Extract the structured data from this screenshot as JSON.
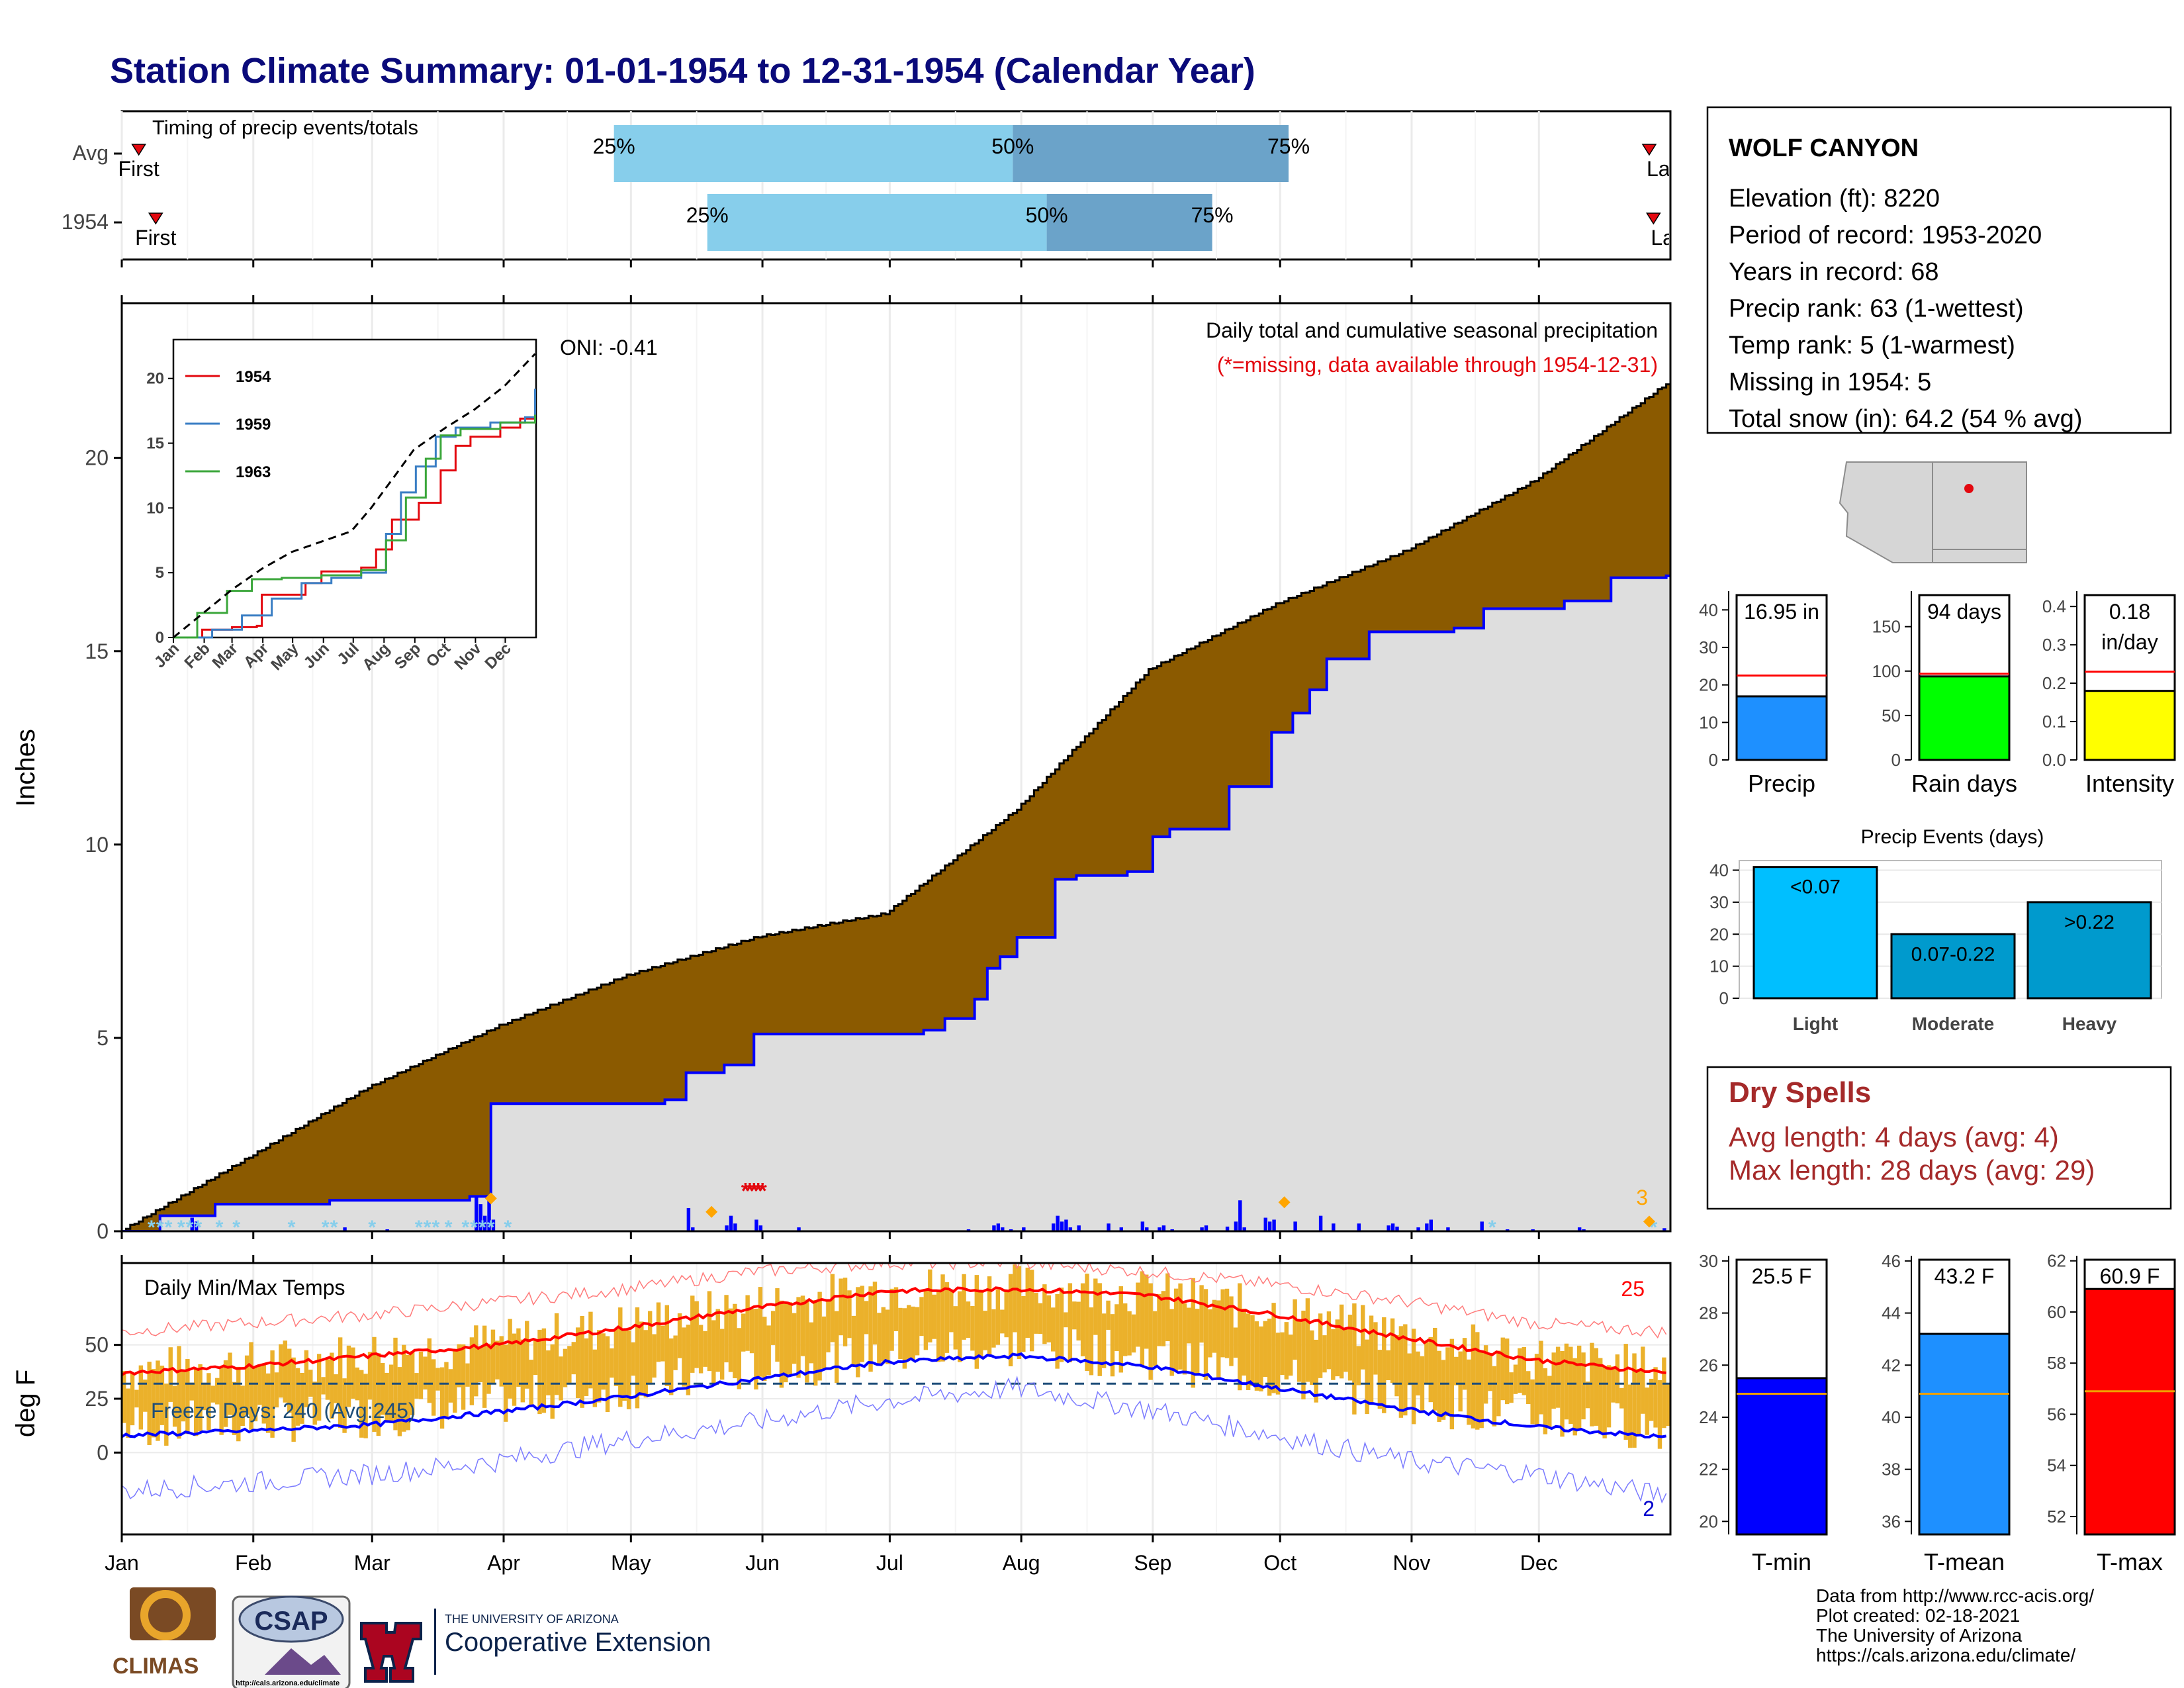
{
  "page": {
    "title": "Station Climate Summary: 01-01-1954 to 12-31-1954 (Calendar Year)",
    "months": [
      "Jan",
      "Feb",
      "Mar",
      "Apr",
      "May",
      "Jun",
      "Jul",
      "Aug",
      "Sep",
      "Oct",
      "Nov",
      "Dec"
    ],
    "logos": {
      "climas": "CLIMAS",
      "csap": "CSAP",
      "csap_url": "http://cals.arizona.edu/climate",
      "ua_line1": "THE UNIVERSITY OF ARIZONA",
      "ua_line2": "Cooperative Extension"
    },
    "footer": [
      "Data from http://www.rcc-acis.org/",
      "Plot created: 02-18-2021",
      "The University of Arizona",
      "https://cals.arizona.edu/climate/"
    ]
  },
  "station": {
    "name": "WOLF CANYON",
    "lines": [
      "Elevation (ft): 8220",
      "Period of record: 1953-2020",
      "Years in record: 68",
      "Precip rank: 63 (1-wettest)",
      "Temp rank: 5 (1-warmest)",
      "Missing in 1954: 5",
      "Total snow (in): 64.2 (54 % avg)"
    ]
  },
  "dry_spells": {
    "title": "Dry Spells",
    "avg_line": "Avg length: 4 days (avg: 4)",
    "max_line": "Max length: 28 days (avg: 29)"
  },
  "chart_data": [
    {
      "id": "timing",
      "type": "bar",
      "title": "Timing of precip events/totals",
      "rows": [
        "Avg",
        "1954"
      ],
      "avg": {
        "first_doy": 5,
        "p25_doy": 117,
        "p50_doy": 211,
        "p75_doy": 276,
        "last_doy": 361
      },
      "y1954": {
        "first_doy": 9,
        "p25_doy": 139,
        "p50_doy": 219,
        "p75_doy": 258,
        "last_doy": 362
      },
      "first_label": "First",
      "last_label": "Last",
      "pct_labels": [
        "25%",
        "50%",
        "75%"
      ],
      "colors": {
        "light": "#87ceeb",
        "dark": "#6ba3c9",
        "marker": "#e3080f"
      }
    },
    {
      "id": "precip",
      "type": "area",
      "title": "Daily total and cumulative seasonal precipitation",
      "subtitle": "(*=missing, data available through 1954-12-31)",
      "ylabel": "Inches",
      "ylim": [
        0,
        24
      ],
      "yticks": [
        0,
        5,
        10,
        15,
        20
      ],
      "oni": "ONI: -0.41",
      "count_label": "3",
      "avg_cumulative": [
        [
          1,
          0.0
        ],
        [
          31,
          1.9
        ],
        [
          59,
          3.7
        ],
        [
          90,
          5.3
        ],
        [
          120,
          6.6
        ],
        [
          151,
          7.6
        ],
        [
          181,
          8.2
        ],
        [
          212,
          10.9
        ],
        [
          243,
          14.5
        ],
        [
          273,
          16.2
        ],
        [
          304,
          17.6
        ],
        [
          334,
          19.4
        ],
        [
          365,
          21.9
        ]
      ],
      "y1954_cumulative": [
        [
          1,
          0.0
        ],
        [
          10,
          0.4
        ],
        [
          23,
          0.7
        ],
        [
          50,
          0.8
        ],
        [
          83,
          0.9
        ],
        [
          88,
          3.3
        ],
        [
          129,
          3.4
        ],
        [
          134,
          4.1
        ],
        [
          143,
          4.3
        ],
        [
          150,
          5.1
        ],
        [
          190,
          5.2
        ],
        [
          195,
          5.5
        ],
        [
          202,
          6.0
        ],
        [
          205,
          6.8
        ],
        [
          208,
          7.1
        ],
        [
          212,
          7.6
        ],
        [
          221,
          9.1
        ],
        [
          226,
          9.2
        ],
        [
          238,
          9.3
        ],
        [
          244,
          10.2
        ],
        [
          248,
          10.4
        ],
        [
          262,
          11.5
        ],
        [
          272,
          12.9
        ],
        [
          277,
          13.4
        ],
        [
          281,
          14.0
        ],
        [
          285,
          14.8
        ],
        [
          295,
          15.5
        ],
        [
          315,
          15.6
        ],
        [
          322,
          16.1
        ],
        [
          341,
          16.3
        ],
        [
          352,
          16.9
        ],
        [
          365,
          16.95
        ]
      ],
      "daily": [
        [
          17,
          0.35
        ],
        [
          18,
          0.25
        ],
        [
          53,
          0.1
        ],
        [
          63,
          0.05
        ],
        [
          84,
          0.9
        ],
        [
          85,
          0.7
        ],
        [
          86,
          0.4
        ],
        [
          87,
          0.8
        ],
        [
          88,
          0.3
        ],
        [
          134,
          0.6
        ],
        [
          135,
          0.1
        ],
        [
          143,
          0.15
        ],
        [
          144,
          0.4
        ],
        [
          145,
          0.2
        ],
        [
          150,
          0.3
        ],
        [
          151,
          0.15
        ],
        [
          160,
          0.1
        ],
        [
          200,
          0.05
        ],
        [
          206,
          0.15
        ],
        [
          207,
          0.2
        ],
        [
          208,
          0.1
        ],
        [
          210,
          0.05
        ],
        [
          213,
          0.1
        ],
        [
          220,
          0.2
        ],
        [
          221,
          0.4
        ],
        [
          222,
          0.25
        ],
        [
          223,
          0.3
        ],
        [
          224,
          0.1
        ],
        [
          226,
          0.15
        ],
        [
          233,
          0.2
        ],
        [
          236,
          0.1
        ],
        [
          241,
          0.25
        ],
        [
          242,
          0.1
        ],
        [
          245,
          0.1
        ],
        [
          246,
          0.15
        ],
        [
          248,
          0.05
        ],
        [
          255,
          0.1
        ],
        [
          256,
          0.15
        ],
        [
          261,
          0.12
        ],
        [
          263,
          0.25
        ],
        [
          264,
          0.8
        ],
        [
          265,
          0.1
        ],
        [
          270,
          0.35
        ],
        [
          271,
          0.25
        ],
        [
          272,
          0.3
        ],
        [
          277,
          0.25
        ],
        [
          283,
          0.4
        ],
        [
          286,
          0.2
        ],
        [
          292,
          0.2
        ],
        [
          299,
          0.15
        ],
        [
          300,
          0.2
        ],
        [
          301,
          0.12
        ],
        [
          306,
          0.1
        ],
        [
          308,
          0.2
        ],
        [
          309,
          0.3
        ],
        [
          313,
          0.1
        ],
        [
          321,
          0.25
        ],
        [
          327,
          0.05
        ],
        [
          333,
          0.05
        ],
        [
          344,
          0.1
        ],
        [
          345,
          0.05
        ],
        [
          364,
          0.08
        ]
      ],
      "snow_days": [
        8,
        10,
        12,
        15,
        17,
        19,
        24,
        28,
        41,
        49,
        51,
        60,
        71,
        73,
        75,
        78,
        82,
        84,
        86,
        88,
        92,
        324,
        362
      ],
      "orange_markers": [
        [
          88,
          0.85
        ],
        [
          140,
          0.5
        ],
        [
          275,
          0.75
        ],
        [
          361,
          0.25
        ]
      ],
      "missing_doys": [
        148,
        149,
        150,
        151,
        152
      ],
      "colors": {
        "avg_fill": "#8b5a00",
        "y1954_fill": "#dedede",
        "y1954_line": "#0000ff",
        "daily": "#0000ff",
        "snow": "#87ceeb",
        "missing": "#e3080f"
      }
    },
    {
      "id": "inset",
      "type": "line",
      "xlabels": [
        "Jan",
        "Feb",
        "Mar",
        "Apr",
        "May",
        "Jun",
        "Jul",
        "Aug",
        "Sep",
        "Oct",
        "Nov",
        "Dec"
      ],
      "ylim": [
        0,
        23
      ],
      "yticks": [
        0,
        5,
        10,
        15,
        20
      ],
      "series": [
        {
          "name": "1954",
          "color": "#e3080f",
          "points": [
            [
              1,
              0
            ],
            [
              30,
              0.6
            ],
            [
              60,
              0.8
            ],
            [
              85,
              0.9
            ],
            [
              90,
              3.3
            ],
            [
              134,
              4.2
            ],
            [
              150,
              5.1
            ],
            [
              190,
              5.4
            ],
            [
              205,
              6.8
            ],
            [
              221,
              9.1
            ],
            [
              248,
              10.4
            ],
            [
              270,
              12.9
            ],
            [
              285,
              14.8
            ],
            [
              300,
              15.5
            ],
            [
              330,
              16.2
            ],
            [
              350,
              16.9
            ],
            [
              365,
              16.95
            ]
          ]
        },
        {
          "name": "1959",
          "color": "#3a7ec4",
          "points": [
            [
              1,
              0
            ],
            [
              40,
              0.6
            ],
            [
              70,
              1.7
            ],
            [
              100,
              3.0
            ],
            [
              130,
              4.2
            ],
            [
              160,
              4.6
            ],
            [
              190,
              5.0
            ],
            [
              215,
              8.0
            ],
            [
              230,
              11.2
            ],
            [
              245,
              13.2
            ],
            [
              265,
              15.5
            ],
            [
              285,
              16.2
            ],
            [
              320,
              16.6
            ],
            [
              355,
              17.0
            ],
            [
              365,
              19.2
            ]
          ]
        },
        {
          "name": "1963",
          "color": "#3aa63a",
          "points": [
            [
              1,
              0
            ],
            [
              25,
              1.9
            ],
            [
              55,
              3.6
            ],
            [
              80,
              4.5
            ],
            [
              110,
              4.6
            ],
            [
              150,
              4.8
            ],
            [
              190,
              5.2
            ],
            [
              215,
              7.5
            ],
            [
              235,
              10.8
            ],
            [
              255,
              13.8
            ],
            [
              270,
              15.6
            ],
            [
              290,
              16.1
            ],
            [
              330,
              16.6
            ],
            [
              365,
              17.2
            ]
          ]
        },
        {
          "name": "",
          "color": "#000000",
          "dashed": true,
          "points": [
            [
              1,
              0
            ],
            [
              60,
              3.7
            ],
            [
              90,
              5.3
            ],
            [
              120,
              6.6
            ],
            [
              150,
              7.4
            ],
            [
              180,
              8.2
            ],
            [
              200,
              10.0
            ],
            [
              225,
              12.6
            ],
            [
              243,
              14.5
            ],
            [
              275,
              16.2
            ],
            [
              304,
              17.6
            ],
            [
              334,
              19.4
            ],
            [
              365,
              21.9
            ]
          ]
        }
      ]
    },
    {
      "id": "temps",
      "type": "line",
      "title": "Daily Min/Max Temps",
      "ylabel": "deg F",
      "ylim": [
        -38,
        88
      ],
      "yticks": [
        0,
        25,
        50
      ],
      "freeze_label": "Freeze Days: 240 (Avg:245)",
      "freeze_line": 32,
      "count_max_label": "25",
      "count_min_label": "2",
      "avg_max": [
        [
          1,
          37
        ],
        [
          30,
          40
        ],
        [
          60,
          45
        ],
        [
          90,
          50
        ],
        [
          120,
          58
        ],
        [
          150,
          67
        ],
        [
          181,
          75
        ],
        [
          212,
          76
        ],
        [
          243,
          73
        ],
        [
          273,
          64
        ],
        [
          304,
          53
        ],
        [
          334,
          43
        ],
        [
          365,
          37
        ]
      ],
      "avg_min": [
        [
          1,
          8
        ],
        [
          30,
          10
        ],
        [
          60,
          13
        ],
        [
          90,
          19
        ],
        [
          120,
          26
        ],
        [
          150,
          34
        ],
        [
          181,
          42
        ],
        [
          212,
          45
        ],
        [
          243,
          40
        ],
        [
          273,
          30
        ],
        [
          304,
          20
        ],
        [
          334,
          12
        ],
        [
          365,
          7
        ]
      ],
      "record_max": [
        [
          1,
          56
        ],
        [
          30,
          60
        ],
        [
          60,
          64
        ],
        [
          90,
          70
        ],
        [
          120,
          76
        ],
        [
          150,
          84
        ],
        [
          181,
          88
        ],
        [
          212,
          88
        ],
        [
          243,
          84
        ],
        [
          273,
          78
        ],
        [
          304,
          70
        ],
        [
          334,
          60
        ],
        [
          365,
          56
        ]
      ],
      "record_min": [
        [
          1,
          -18
        ],
        [
          30,
          -14
        ],
        [
          60,
          -10
        ],
        [
          90,
          -4
        ],
        [
          120,
          6
        ],
        [
          150,
          14
        ],
        [
          181,
          24
        ],
        [
          212,
          30
        ],
        [
          243,
          20
        ],
        [
          273,
          8
        ],
        [
          304,
          -4
        ],
        [
          334,
          -10
        ],
        [
          365,
          -20
        ]
      ],
      "colors": {
        "bars": "#ebb12b",
        "avg_max": "#ff0000",
        "avg_min": "#0000ff",
        "record_max": "#ff7b7b",
        "record_min": "#7b7bff",
        "freeze": "#1f4e79"
      }
    },
    {
      "id": "summary-precip",
      "type": "bar",
      "panels": [
        {
          "label": "Precip",
          "value": 16.95,
          "value_label": "16.95 in",
          "avg": 22.5,
          "ylim": [
            0,
            45
          ],
          "yticks": [
            0,
            10,
            20,
            30,
            40
          ],
          "color": "#1e90ff"
        },
        {
          "label": "Rain days",
          "value": 94,
          "value_label": "94 days",
          "avg": 97,
          "ylim": [
            0,
            190
          ],
          "yticks": [
            0,
            50,
            100,
            150
          ],
          "color": "#00ff00"
        },
        {
          "label": "Intensity",
          "value": 0.18,
          "value_label": "0.18 in/day",
          "avg": 0.23,
          "ylim": [
            0,
            0.44
          ],
          "yticks": [
            0.0,
            0.1,
            0.2,
            0.3,
            0.4
          ],
          "color": "#ffff00"
        }
      ]
    },
    {
      "id": "precip-events",
      "type": "bar",
      "title": "Precip Events (days)",
      "categories": [
        "Light",
        "Moderate",
        "Heavy"
      ],
      "bar_labels": [
        "<0.07",
        "0.07-0.22",
        ">0.22"
      ],
      "values": [
        41,
        20,
        30
      ],
      "ylim": [
        0,
        43
      ],
      "yticks": [
        0,
        10,
        20,
        30,
        40
      ],
      "colors": [
        "#00bfff",
        "#009acd",
        "#009acd"
      ]
    },
    {
      "id": "summary-temps",
      "type": "bar",
      "panels": [
        {
          "label": "T-min",
          "value": 25.5,
          "value_label": "25.5 F",
          "avg": 24.9,
          "ylim": [
            19.5,
            30.2
          ],
          "yticks": [
            20,
            22,
            24,
            26,
            28,
            30
          ],
          "color": "#0000ff"
        },
        {
          "label": "T-mean",
          "value": 43.2,
          "value_label": "43.2 F",
          "avg": 40.9,
          "ylim": [
            35.5,
            46.2
          ],
          "yticks": [
            36,
            38,
            40,
            42,
            44,
            46
          ],
          "color": "#1e90ff"
        },
        {
          "label": "T-max",
          "value": 60.9,
          "value_label": "60.9 F",
          "avg": 56.9,
          "ylim": [
            51.3,
            62.2
          ],
          "yticks": [
            52,
            54,
            56,
            58,
            60,
            62
          ],
          "color": "#ff0000"
        }
      ]
    }
  ]
}
